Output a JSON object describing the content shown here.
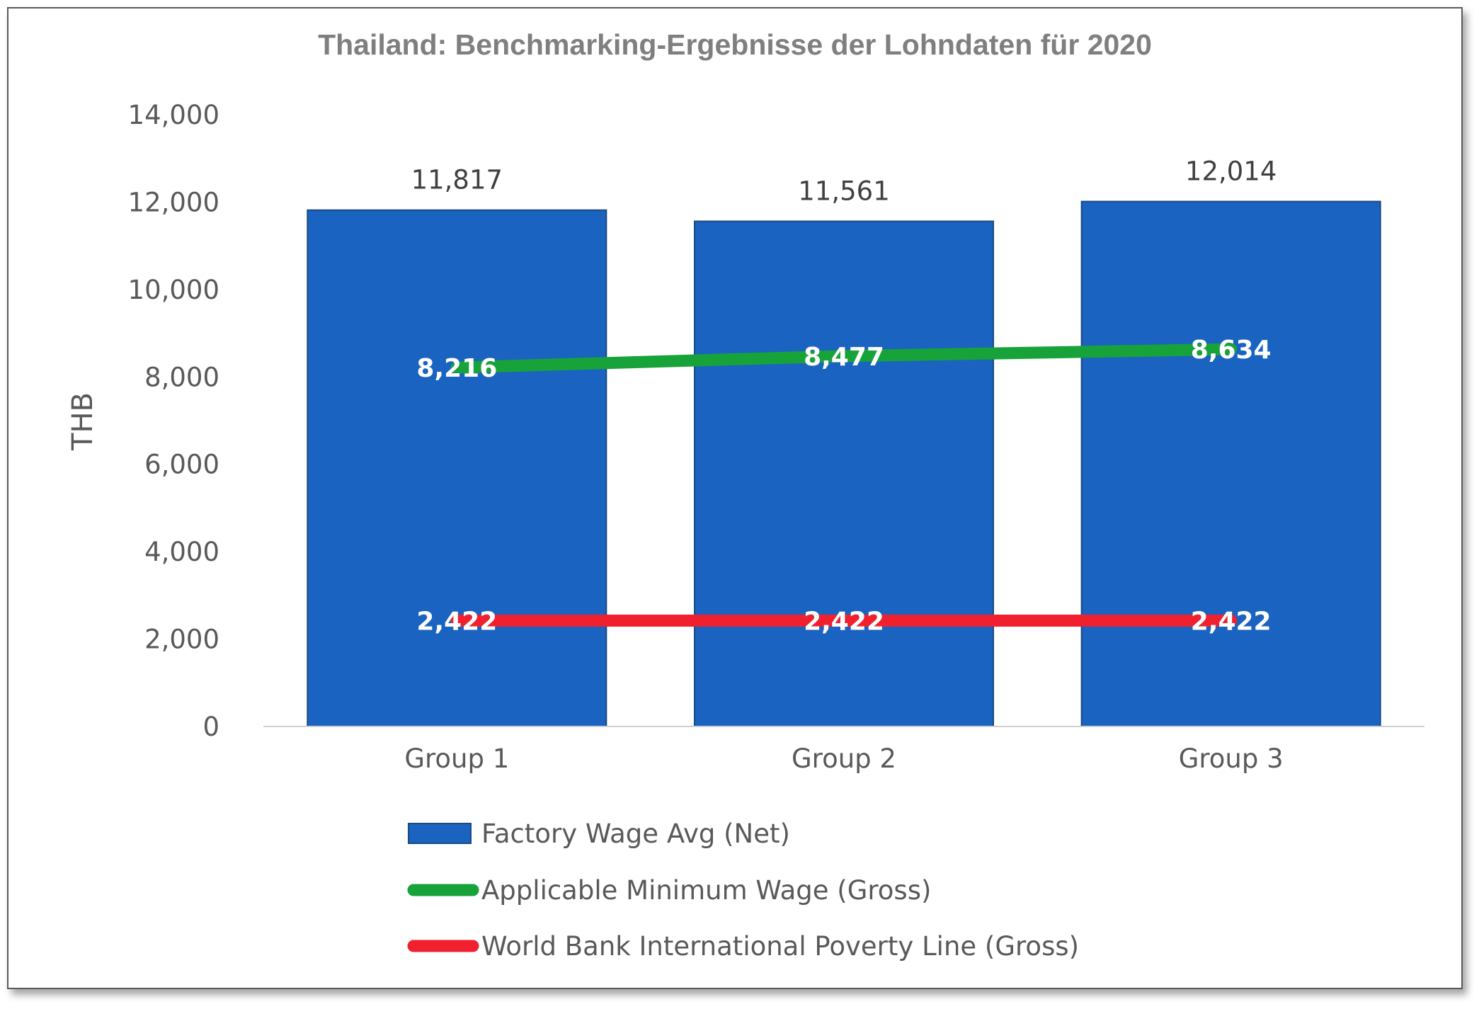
{
  "chart_data": {
    "type": "bar",
    "title": "Thailand: Benchmarking-Ergebnisse der Lohndaten für 2020",
    "ylabel": "THB",
    "xlabel": "",
    "ylim": [
      0,
      14000
    ],
    "yticks": [
      0,
      2000,
      4000,
      6000,
      8000,
      10000,
      12000,
      14000
    ],
    "ytick_labels": [
      "0",
      "2,000",
      "4,000",
      "6,000",
      "8,000",
      "10,000",
      "12,000",
      "14,000"
    ],
    "categories": [
      "Group 1",
      "Group 2",
      "Group 3"
    ],
    "grid": false,
    "legend_position": "bottom",
    "series": [
      {
        "name": "Factory Wage Avg (Net)",
        "kind": "bar",
        "color": "#1a63c0",
        "values": [
          11817,
          11561,
          12014
        ],
        "labels": [
          "11,817",
          "11,561",
          "12,014"
        ]
      },
      {
        "name": "Applicable Minimum Wage (Gross)",
        "kind": "line",
        "color": "#17a33a",
        "values": [
          8216,
          8477,
          8634
        ],
        "labels": [
          "8,216",
          "8,477",
          "8,634"
        ]
      },
      {
        "name": "World Bank International Poverty Line (Gross)",
        "kind": "line",
        "color": "#f0202e",
        "values": [
          2422,
          2422,
          2422
        ],
        "labels": [
          "2,422",
          "2,422",
          "2,422"
        ]
      }
    ]
  }
}
